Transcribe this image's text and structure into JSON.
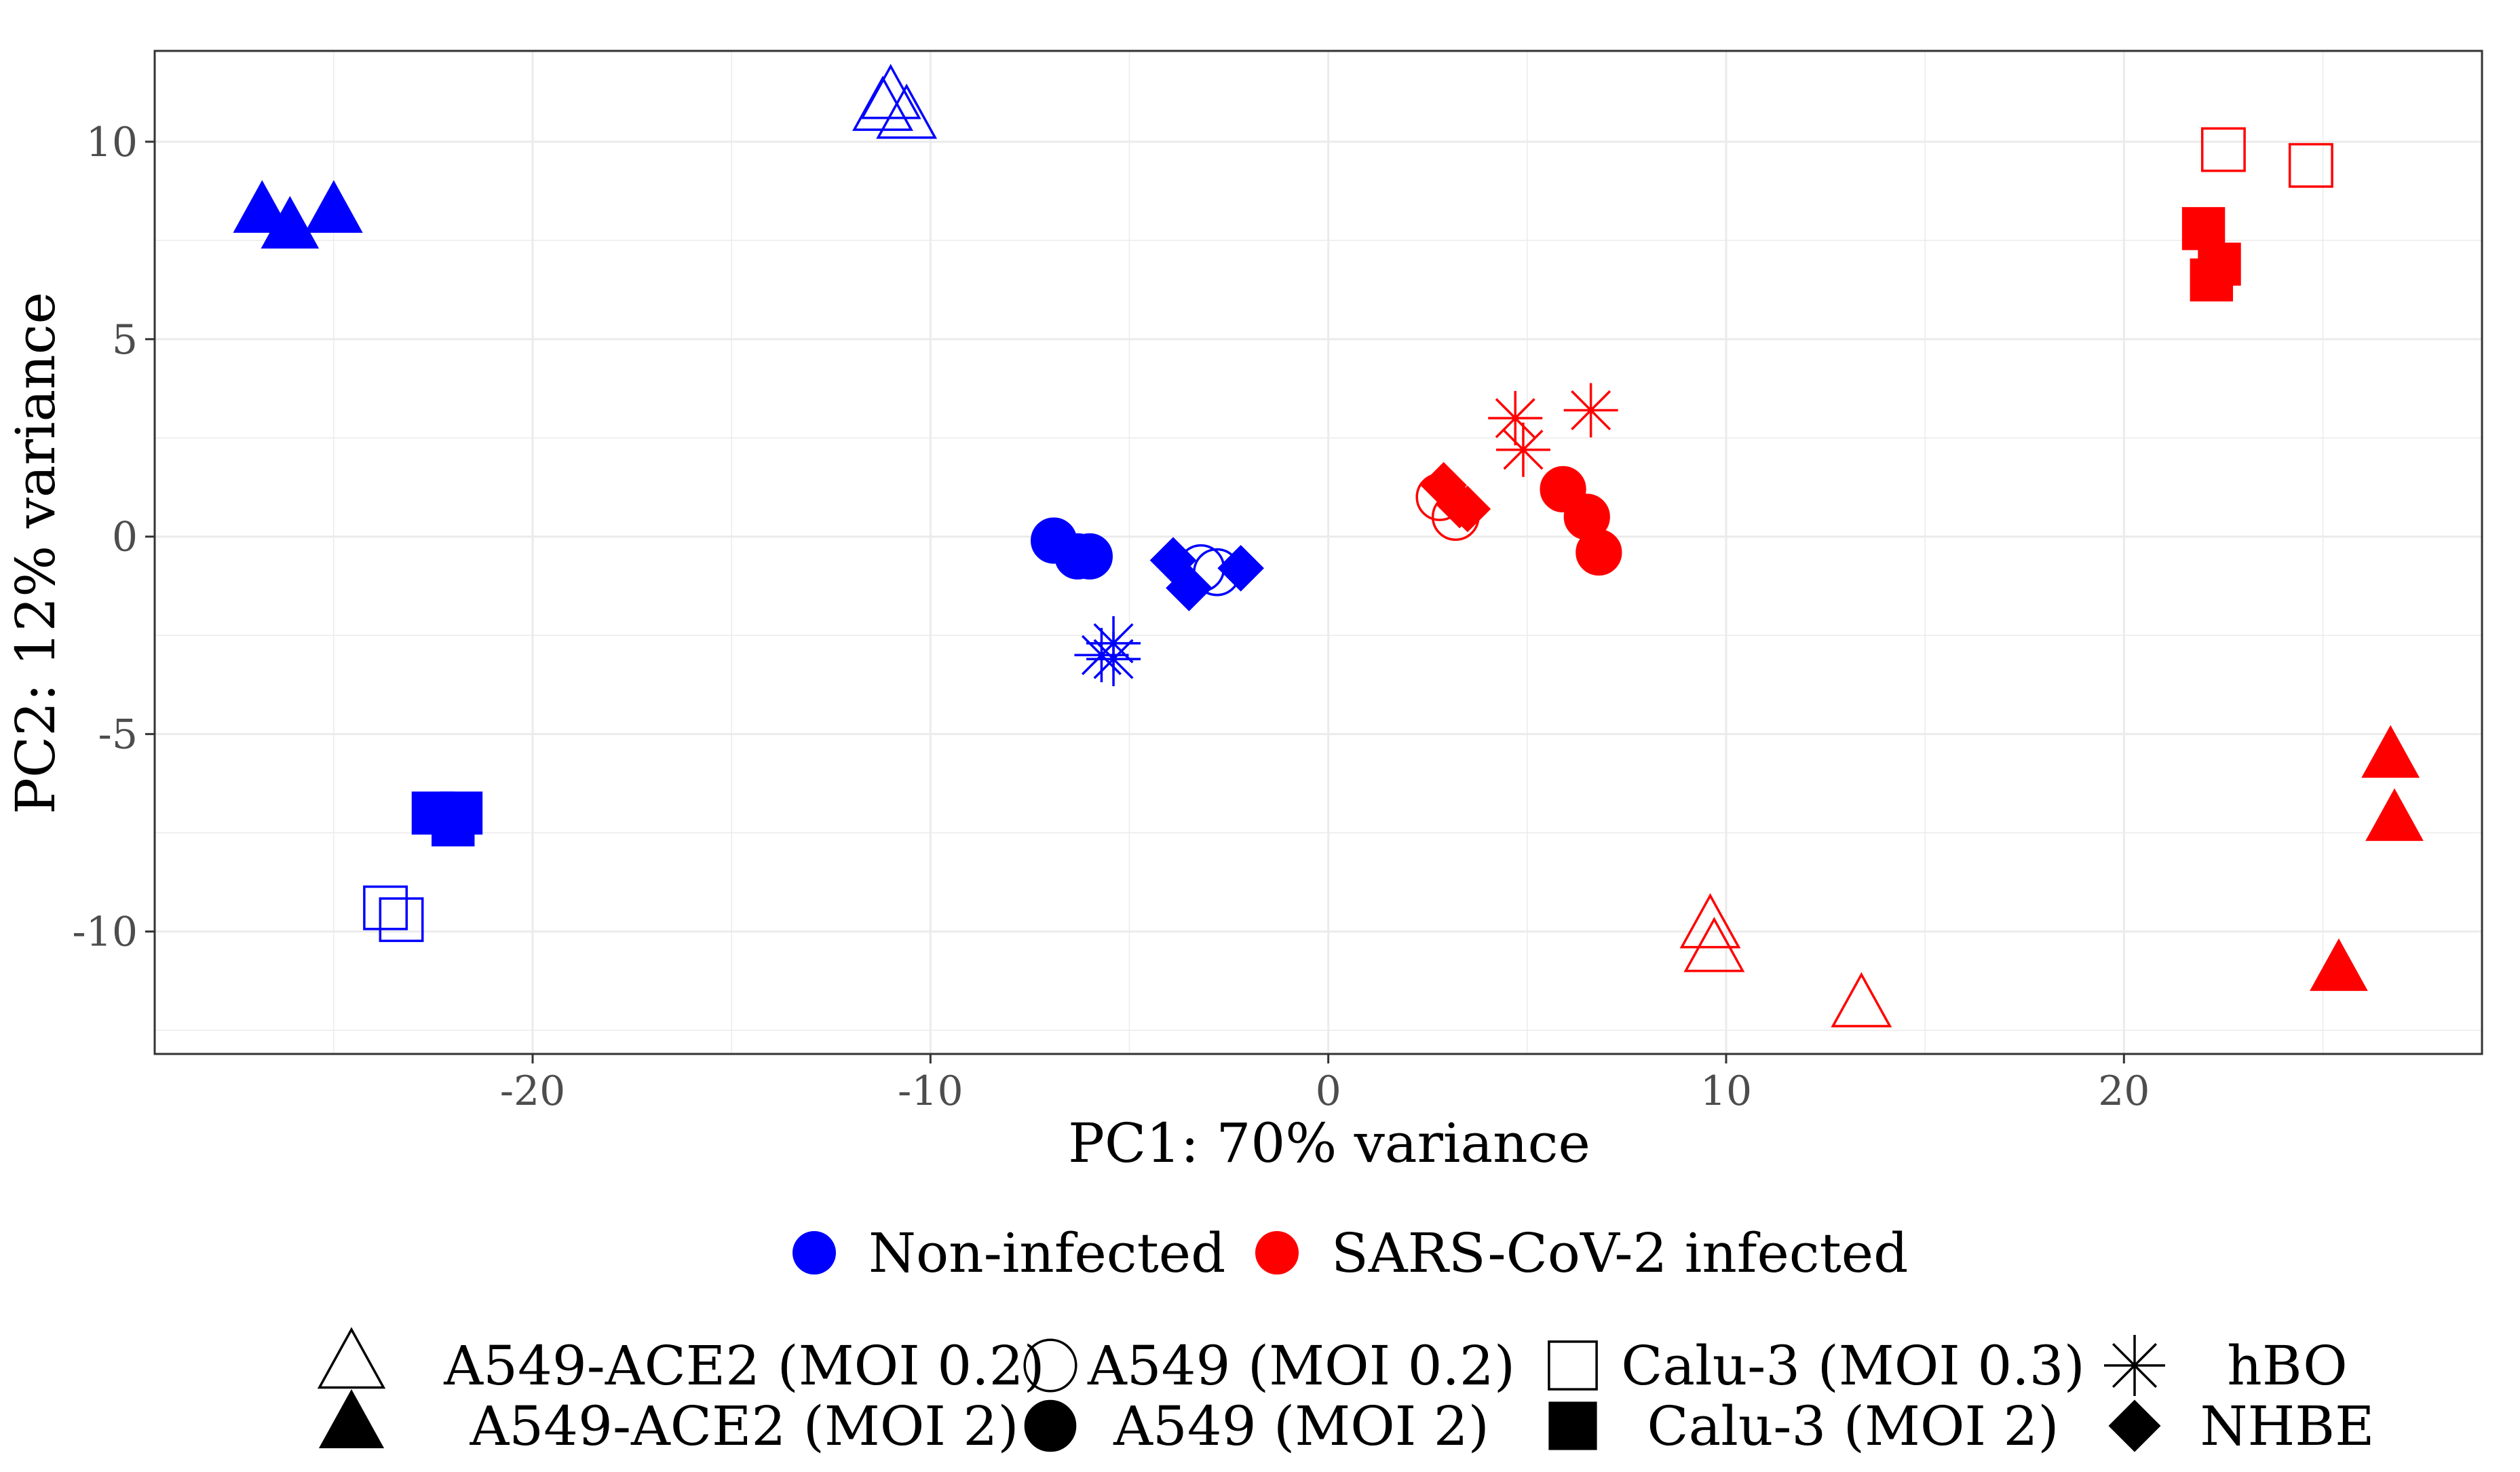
{
  "chart_data": {
    "type": "scatter",
    "title": "",
    "xlabel": "PC1: 70% variance",
    "ylabel": "PC2: 12% variance",
    "xlim": [
      -29.5,
      29.0
    ],
    "ylim": [
      -13.1,
      12.3
    ],
    "xticks": [
      -20,
      -10,
      0,
      10,
      20
    ],
    "yticks": [
      -10,
      -5,
      0,
      5,
      10
    ],
    "xtick_labels": [
      "-20",
      "-10",
      "0",
      "10",
      "20"
    ],
    "ytick_labels": [
      "-10",
      "-5",
      "0",
      "5",
      "10"
    ],
    "grid": true,
    "legend_position": "bottom",
    "colors": {
      "non_infected": "#0000ff",
      "infected": "#ff0000"
    },
    "color_legend": [
      {
        "key": "non_infected",
        "label": "Non-infected"
      },
      {
        "key": "infected",
        "label": "SARS-CoV-2 infected"
      }
    ],
    "shape_legend": [
      {
        "key": "a549ace2_moi02",
        "marker": "triangle-open",
        "label": "A549-ACE2 (MOI 0.2)"
      },
      {
        "key": "a549_moi02",
        "marker": "circle-open",
        "label": "A549 (MOI 0.2)"
      },
      {
        "key": "calu3_moi03",
        "marker": "square-open",
        "label": "Calu-3 (MOI 0.3)"
      },
      {
        "key": "hbo",
        "marker": "asterisk",
        "label": "hBO"
      },
      {
        "key": "a549ace2_moi2",
        "marker": "triangle-filled",
        "label": "A549-ACE2 (MOI 2)"
      },
      {
        "key": "a549_moi2",
        "marker": "circle-filled",
        "label": "A549 (MOI 2)"
      },
      {
        "key": "calu3_moi2",
        "marker": "square-filled",
        "label": "Calu-3 (MOI 2)"
      },
      {
        "key": "nhbe",
        "marker": "diamond-filled",
        "label": "NHBE"
      }
    ],
    "series": [
      {
        "name": "Non-infected / A549-ACE2 (MOI 2)",
        "color": "non_infected",
        "marker": "triangle-filled",
        "points": [
          [
            -26.8,
            8.2
          ],
          [
            -26.1,
            7.8
          ],
          [
            -25.0,
            8.2
          ]
        ]
      },
      {
        "name": "Non-infected / A549-ACE2 (MOI 0.2)",
        "color": "non_infected",
        "marker": "triangle-open",
        "points": [
          [
            -11.0,
            11.1
          ],
          [
            -11.2,
            10.8
          ],
          [
            -10.6,
            10.6
          ]
        ]
      },
      {
        "name": "Non-infected / Calu-3 (MOI 2)",
        "color": "non_infected",
        "marker": "square-filled",
        "points": [
          [
            -22.5,
            -7.0
          ],
          [
            -21.8,
            -7.0
          ],
          [
            -22.0,
            -7.3
          ]
        ]
      },
      {
        "name": "Non-infected / Calu-3 (MOI 0.3)",
        "color": "non_infected",
        "marker": "square-open",
        "points": [
          [
            -23.7,
            -9.4
          ],
          [
            -23.3,
            -9.7
          ]
        ]
      },
      {
        "name": "Non-infected / A549 (MOI 2)",
        "color": "non_infected",
        "marker": "circle-filled",
        "points": [
          [
            -6.9,
            -0.1
          ],
          [
            -6.3,
            -0.5
          ],
          [
            -6.0,
            -0.5
          ]
        ]
      },
      {
        "name": "Non-infected / A549 (MOI 0.2)",
        "color": "non_infected",
        "marker": "circle-open",
        "points": [
          [
            -3.2,
            -0.8
          ],
          [
            -2.8,
            -0.9
          ]
        ]
      },
      {
        "name": "Non-infected / hBO",
        "color": "non_infected",
        "marker": "asterisk",
        "points": [
          [
            -5.4,
            -2.7
          ],
          [
            -5.7,
            -3.0
          ],
          [
            -5.4,
            -3.1
          ]
        ]
      },
      {
        "name": "Non-infected / NHBE",
        "color": "non_infected",
        "marker": "diamond-filled",
        "points": [
          [
            -3.9,
            -0.6
          ],
          [
            -3.5,
            -1.3
          ],
          [
            -2.2,
            -0.8
          ]
        ]
      },
      {
        "name": "SARS-CoV-2 infected / A549-ACE2 (MOI 2)",
        "color": "infected",
        "marker": "triangle-filled",
        "points": [
          [
            26.7,
            -5.6
          ],
          [
            26.8,
            -7.2
          ],
          [
            25.4,
            -11.0
          ]
        ]
      },
      {
        "name": "SARS-CoV-2 infected / A549-ACE2 (MOI 0.2)",
        "color": "infected",
        "marker": "triangle-open",
        "points": [
          [
            9.6,
            -9.9
          ],
          [
            9.7,
            -10.5
          ],
          [
            13.4,
            -11.9
          ]
        ]
      },
      {
        "name": "SARS-CoV-2 infected / Calu-3 (MOI 2)",
        "color": "infected",
        "marker": "square-filled",
        "points": [
          [
            22.0,
            7.8
          ],
          [
            22.4,
            6.9
          ],
          [
            22.2,
            6.5
          ]
        ]
      },
      {
        "name": "SARS-CoV-2 infected / Calu-3 (MOI 0.3)",
        "color": "infected",
        "marker": "square-open",
        "points": [
          [
            22.5,
            9.8
          ],
          [
            24.7,
            9.4
          ]
        ]
      },
      {
        "name": "SARS-CoV-2 infected / A549 (MOI 2)",
        "color": "infected",
        "marker": "circle-filled",
        "points": [
          [
            5.9,
            1.2
          ],
          [
            6.5,
            0.5
          ],
          [
            6.8,
            -0.4
          ]
        ]
      },
      {
        "name": "SARS-CoV-2 infected / A549 (MOI 0.2)",
        "color": "infected",
        "marker": "circle-open",
        "points": [
          [
            2.8,
            1.0
          ],
          [
            3.2,
            0.5
          ]
        ]
      },
      {
        "name": "SARS-CoV-2 infected / hBO",
        "color": "infected",
        "marker": "asterisk",
        "points": [
          [
            4.7,
            3.0
          ],
          [
            4.9,
            2.2
          ],
          [
            6.6,
            3.2
          ]
        ]
      },
      {
        "name": "SARS-CoV-2 infected / NHBE",
        "color": "infected",
        "marker": "diamond-filled",
        "points": [
          [
            2.9,
            1.3
          ],
          [
            3.3,
            0.8
          ],
          [
            3.5,
            0.7
          ]
        ]
      }
    ]
  }
}
